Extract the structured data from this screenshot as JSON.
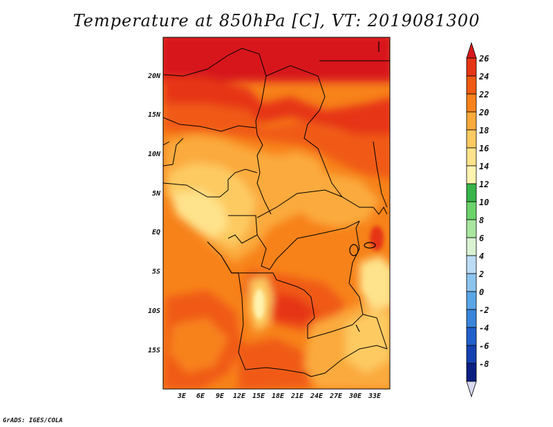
{
  "title": "Temperature at 850hPa [C], VT: 2019081300",
  "credit": "GrADS: IGES/COLA",
  "map": {
    "region": "Central Africa",
    "lat_labels": [
      "20N",
      "15N",
      "10N",
      "5N",
      "EQ",
      "5S",
      "10S",
      "15S"
    ],
    "lon_labels": [
      "3E",
      "6E",
      "9E",
      "12E",
      "15E",
      "18E",
      "21E",
      "24E",
      "27E",
      "30E",
      "33E"
    ]
  },
  "colorbar": {
    "labels": [
      "26",
      "24",
      "22",
      "20",
      "18",
      "16",
      "14",
      "12",
      "10",
      "8",
      "6",
      "4",
      "2",
      "0",
      "-2",
      "-4",
      "-6",
      "-8"
    ],
    "colors": [
      "#d7191c",
      "#e63514",
      "#f05a12",
      "#f7821a",
      "#fbaa3c",
      "#fdca62",
      "#fee38c",
      "#fff3b0",
      "#37b44a",
      "#6cd36a",
      "#a8e6a0",
      "#d9f2d2",
      "#bcdcf4",
      "#8cc4ee",
      "#5aa6e6",
      "#3885da",
      "#2160cc",
      "#1540b0",
      "#0b1f82"
    ],
    "bottom_triangle_color": "#d8d8f0"
  }
}
